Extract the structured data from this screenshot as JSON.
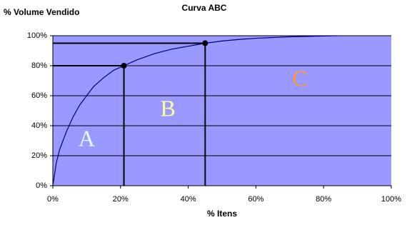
{
  "chart_data": {
    "type": "line",
    "title": "Curva ABC",
    "xlabel": "% Itens",
    "ylabel": "% Volume Vendido",
    "series": [
      {
        "color": "#000080",
        "x": [
          0,
          1,
          2,
          4,
          6,
          8,
          10,
          12,
          15,
          18,
          21,
          25,
          30,
          35,
          40,
          45,
          50,
          55,
          60,
          70,
          84
        ],
        "values": [
          0,
          15,
          24,
          36,
          46,
          54,
          60,
          66,
          72,
          77,
          80,
          84,
          88,
          91,
          93,
          95,
          96.5,
          97.5,
          98.3,
          99.3,
          100
        ]
      }
    ],
    "markers": [
      {
        "x": 21,
        "y": 80
      },
      {
        "x": 45,
        "y": 95
      }
    ],
    "annotations": [
      {
        "text": "A",
        "color": "#ddffff"
      },
      {
        "text": "B",
        "color": "#ffff99"
      },
      {
        "text": "C",
        "color": "#ff9933"
      }
    ],
    "background": "#9999ff",
    "grid": true,
    "xlim": [
      0,
      100
    ],
    "xticks": [
      {
        "value": 0,
        "label": "0%"
      },
      {
        "value": 20,
        "label": "20%"
      },
      {
        "value": 40,
        "label": "40%"
      },
      {
        "value": 60,
        "label": "60%"
      },
      {
        "value": 80,
        "label": "80%"
      },
      {
        "value": 100,
        "label": "100%"
      }
    ],
    "ylim": [
      0,
      100
    ],
    "yticks": [
      {
        "value": 0,
        "label": "0%"
      },
      {
        "value": 20,
        "label": "20%"
      },
      {
        "value": 40,
        "label": "40%"
      },
      {
        "value": 60,
        "label": "60%"
      },
      {
        "value": 80,
        "label": "80%"
      },
      {
        "value": 100,
        "label": "100%"
      }
    ]
  }
}
